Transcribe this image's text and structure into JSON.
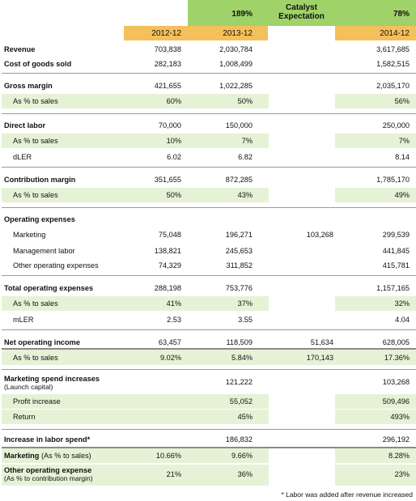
{
  "header": {
    "pct_2013": "189%",
    "catalyst_line1": "Catalyst",
    "catalyst_line2": "Expectation",
    "pct_2014": "78%",
    "col_2012": "2012-12",
    "col_2013": "2013-12",
    "col_2014": "2014-12"
  },
  "rows": {
    "revenue": {
      "label": "Revenue",
      "c1": "703,838",
      "c2": "2,030,784",
      "c3": "",
      "c4": "3,617,685"
    },
    "cogs": {
      "label": "Cost of goods sold",
      "c1": "282,183",
      "c2": "1,008,499",
      "c3": "",
      "c4": "1,582,515"
    },
    "gross": {
      "label": "Gross margin",
      "c1": "421,655",
      "c2": "1,022,285",
      "c3": "",
      "c4": "2,035,170"
    },
    "gross_pct": {
      "label": "As % to sales",
      "c1": "60%",
      "c2": "50%",
      "c3": "",
      "c4": "56%"
    },
    "direct_labor": {
      "label": "Direct labor",
      "c1": "70,000",
      "c2": "150,000",
      "c3": "",
      "c4": "250,000"
    },
    "dl_pct": {
      "label": "As % to sales",
      "c1": "10%",
      "c2": "7%",
      "c3": "",
      "c4": "7%"
    },
    "dler": {
      "label": "dLER",
      "c1": "6.02",
      "c2": "6.82",
      "c3": "",
      "c4": "8.14"
    },
    "contribution": {
      "label": "Contribution margin",
      "c1": "351,655",
      "c2": "872,285",
      "c3": "",
      "c4": "1,785,170"
    },
    "contribution_pct": {
      "label": "As % to sales",
      "c1": "50%",
      "c2": "43%",
      "c3": "",
      "c4": "49%"
    },
    "opex_title": {
      "label": "Operating expenses"
    },
    "marketing": {
      "label": "Marketing",
      "c1": "75,048",
      "c2": "196,271",
      "c3": "103,268",
      "c4": "299,539"
    },
    "mgmt": {
      "label": "Management labor",
      "c1": "138,821",
      "c2": "245,653",
      "c3": "",
      "c4": "441,845"
    },
    "other": {
      "label": "Other operating expenses",
      "c1": "74,329",
      "c2": "311,852",
      "c3": "",
      "c4": "415,781"
    },
    "total_opex": {
      "label": "Total operating expenses",
      "c1": "288,198",
      "c2": "753,776",
      "c3": "",
      "c4": "1,157,165"
    },
    "opex_pct": {
      "label": "As % to sales",
      "c1": "41%",
      "c2": "37%",
      "c3": "",
      "c4": "32%"
    },
    "mler": {
      "label": "mLER",
      "c1": "2.53",
      "c2": "3.55",
      "c3": "",
      "c4": "4.04"
    },
    "noi": {
      "label": "Net operating income",
      "c1": "63,457",
      "c2": "118,509",
      "c3": "51,634",
      "c4": "628,005"
    },
    "noi_pct": {
      "label": "As % to sales",
      "c1": "9.02%",
      "c2": "5.84%",
      "c3": "170,143",
      "c4": "17.36%"
    },
    "mkt_spend": {
      "label": "Marketing spend increases",
      "sub": "(Launch capital)",
      "c1": "",
      "c2": "121,222",
      "c3": "",
      "c4": "103,268"
    },
    "profit_inc": {
      "label": "Profit increase",
      "c1": "",
      "c2": "55,052",
      "c3": "",
      "c4": "509,496"
    },
    "return": {
      "label": "Return",
      "c1": "",
      "c2": "45%",
      "c3": "",
      "c4": "493%"
    },
    "labor_inc": {
      "label": "Increase in labor spend*",
      "c1": "",
      "c2": "186,832",
      "c3": "",
      "c4": "296,192"
    },
    "mkt_pct": {
      "label": "Marketing",
      "sub": " (As % to sales)",
      "c1": "10.66%",
      "c2": "9.66%",
      "c3": "",
      "c4": "8.28%"
    },
    "other_pct": {
      "label": "Other operating expense",
      "sub": "(As % to contribution margin)",
      "c1": "21%",
      "c2": "36%",
      "c3": "",
      "c4": "23%"
    }
  },
  "footnote": "* Labor was added after revenue increased"
}
